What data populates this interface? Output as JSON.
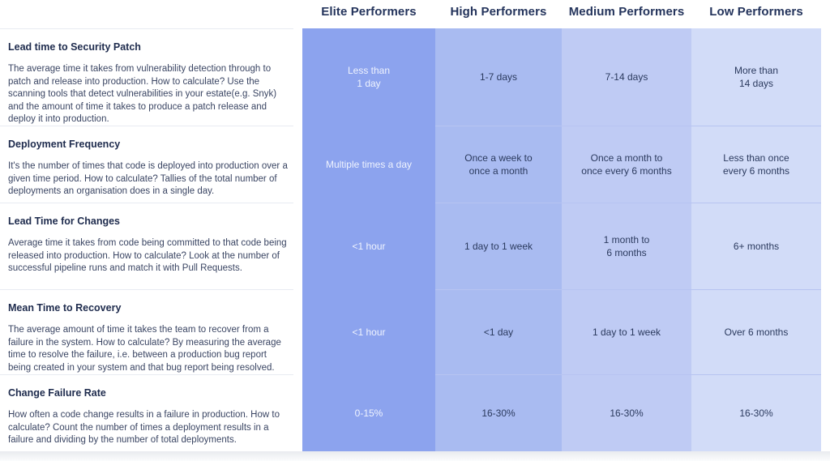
{
  "colors": {
    "elite": "#8CA3EE",
    "high": "#A9BBF1",
    "medium": "#BFCBF4",
    "low": "#D2DCF8",
    "header-text": "#24345C",
    "value-text": "#2B3A5E",
    "elite-value-text": "#EFF3FE",
    "metric-title": "#1E2B4D",
    "metric-desc": "#3A4563",
    "divider-light": "#E8EBF2",
    "divider-blue": "#B7C4F1",
    "footer-top": "#E9EBEF",
    "footer-bottom": "#FBFCFD"
  },
  "headers": {
    "elite": "Elite Performers",
    "high": "High Performers",
    "medium": "Medium Performers",
    "low": "Low Performers"
  },
  "rows": [
    {
      "title": "Lead time to Security Patch",
      "description": "The average time it takes from vulnerability detection through to patch and release into production. How to calculate? Use the scanning tools that detect vulnerabilities in your estate(e.g. Snyk) and the amount of time it takes to produce a patch release and deploy it into production.",
      "elite": "Less than\n1 day",
      "high": "1-7 days",
      "medium": "7-14 days",
      "low": "More than\n14 days"
    },
    {
      "title": "Deployment Frequency",
      "description": "It's the number of times that code is deployed into production over a given time period. How to calculate? Tallies of the total number of deployments an organisation does in a single day.",
      "elite": "Multiple times a day",
      "high": "Once a week to\nonce a month",
      "medium": "Once a month to\nonce every 6 months",
      "low": "Less than once\nevery 6 months"
    },
    {
      "title": "Lead Time for Changes",
      "description": "Average time it takes from code being committed to that code being released into production. How to calculate? Look at the number of successful pipeline runs and match it with Pull Requests.",
      "elite": "<1 hour",
      "high": "1 day to 1 week",
      "medium": "1 month to\n6 months",
      "low": "6+ months"
    },
    {
      "title": "Mean Time to Recovery",
      "description": "The average amount of time it takes the team to recover from a failure in the system. How to calculate? By measuring the average time to resolve the failure, i.e. between a production bug report being created in your system and that bug report being resolved.",
      "elite": "<1 hour",
      "high": "<1 day",
      "medium": "1 day to 1 week",
      "low": "Over 6 months"
    },
    {
      "title": "Change Failure Rate",
      "description": "How often a code change results in a failure in production. How to calculate? Count the number of times a deployment results in a failure and dividing by the number of total deployments.",
      "elite": "0-15%",
      "high": "16-30%",
      "medium": "16-30%",
      "low": "16-30%"
    }
  ]
}
